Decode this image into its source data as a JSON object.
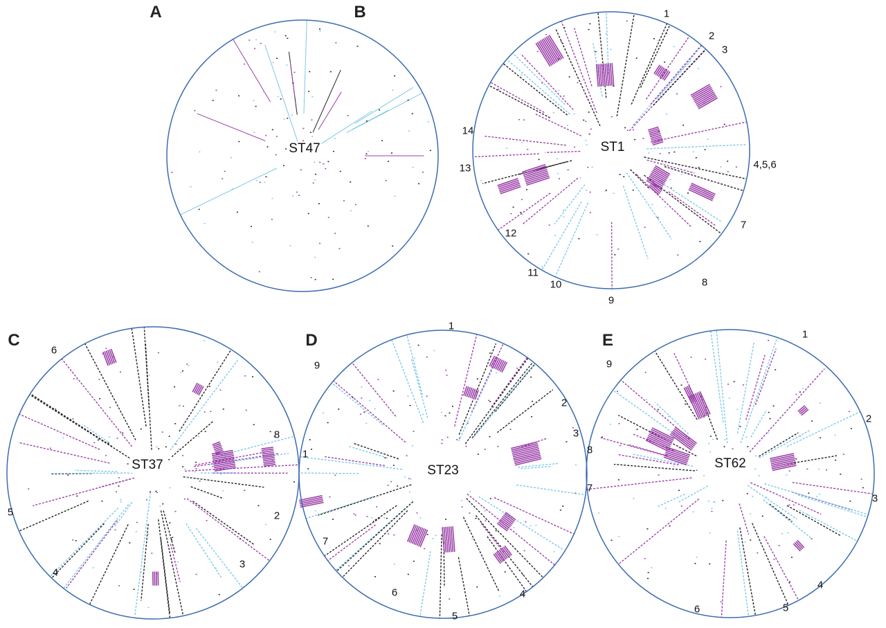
{
  "colors": {
    "ring": "#3a6bb0",
    "purple": "#9b3fa8",
    "light_blue": "#7cc8e8",
    "black": "#222222"
  },
  "panels": [
    {
      "letter": "A",
      "center_label": "ST47",
      "numbers": []
    },
    {
      "letter": "B",
      "center_label": "ST1",
      "numbers": [
        "1",
        "2",
        "3",
        "4,5,6",
        "7",
        "8",
        "9",
        "10",
        "11",
        "12",
        "13",
        "14"
      ]
    },
    {
      "letter": "C",
      "center_label": "ST37",
      "numbers": [
        "6",
        "8",
        "1",
        "2",
        "3",
        "4",
        "5"
      ]
    },
    {
      "letter": "D",
      "center_label": "ST23",
      "numbers": [
        "1",
        "9",
        "2",
        "3",
        "4",
        "5",
        "6",
        "7"
      ]
    },
    {
      "letter": "E",
      "center_label": "ST62",
      "numbers": [
        "1",
        "9",
        "2",
        "8",
        "7",
        "3",
        "4",
        "5",
        "6"
      ]
    }
  ]
}
